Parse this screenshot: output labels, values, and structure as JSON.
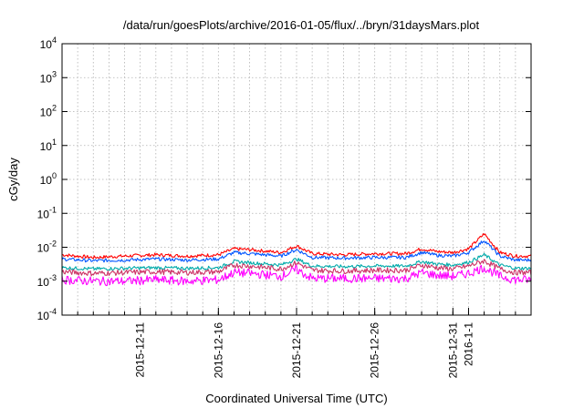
{
  "chart_data": {
    "type": "line",
    "title": "/data/run/goesPlots/archive/2016-01-05/flux/../bryn/31daysMars.plot",
    "xlabel": "Coordinated Universal Time (UTC)",
    "ylabel": "cGy/day",
    "y_scale": "log",
    "ylim": [
      0.0001,
      10000
    ],
    "y_ticks": [
      {
        "value": 0.0001,
        "base": "10",
        "exp": "-4"
      },
      {
        "value": 0.001,
        "base": "10",
        "exp": "-3"
      },
      {
        "value": 0.01,
        "base": "10",
        "exp": "-2"
      },
      {
        "value": 0.1,
        "base": "10",
        "exp": "-1"
      },
      {
        "value": 1,
        "base": "10",
        "exp": "0"
      },
      {
        "value": 10,
        "base": "10",
        "exp": "1"
      },
      {
        "value": 100,
        "base": "10",
        "exp": "2"
      },
      {
        "value": 1000,
        "base": "10",
        "exp": "3"
      },
      {
        "value": 10000,
        "base": "10",
        "exp": "4"
      }
    ],
    "xlim": [
      "2015-12-06",
      "2016-01-05"
    ],
    "x_ticks": [
      {
        "value": "2015-12-11",
        "label": "2015-12-11"
      },
      {
        "value": "2015-12-16",
        "label": "2015-12-16"
      },
      {
        "value": "2015-12-21",
        "label": "2015-12-21"
      },
      {
        "value": "2015-12-26",
        "label": "2015-12-26"
      },
      {
        "value": "2015-12-31",
        "label": "2015-12-31"
      },
      {
        "value": "2016-01-01",
        "label": "2016-1-1"
      }
    ],
    "grid": true,
    "legend": "none",
    "series": [
      {
        "color": "#ff0000",
        "x": [
          "2015-12-06",
          "2015-12-08",
          "2015-12-10",
          "2015-12-12",
          "2015-12-14",
          "2015-12-16",
          "2015-12-17",
          "2015-12-18",
          "2015-12-20",
          "2015-12-21",
          "2015-12-22",
          "2015-12-24",
          "2015-12-26",
          "2015-12-28",
          "2015-12-29",
          "2015-12-30",
          "2015-12-31",
          "2016-01-01",
          "2016-01-02",
          "2016-01-03",
          "2016-01-04",
          "2016-01-05"
        ],
        "y": [
          0.006,
          0.005,
          0.0055,
          0.006,
          0.0055,
          0.006,
          0.009,
          0.0085,
          0.007,
          0.011,
          0.0065,
          0.006,
          0.0065,
          0.0065,
          0.009,
          0.0075,
          0.007,
          0.009,
          0.025,
          0.007,
          0.0055,
          0.0055
        ]
      },
      {
        "color": "#0055ff",
        "x": [
          "2015-12-06",
          "2015-12-08",
          "2015-12-10",
          "2015-12-12",
          "2015-12-14",
          "2015-12-16",
          "2015-12-17",
          "2015-12-18",
          "2015-12-20",
          "2015-12-21",
          "2015-12-22",
          "2015-12-24",
          "2015-12-26",
          "2015-12-28",
          "2015-12-29",
          "2015-12-30",
          "2015-12-31",
          "2016-01-01",
          "2016-01-02",
          "2016-01-03",
          "2016-01-04",
          "2016-01-05"
        ],
        "y": [
          0.0045,
          0.004,
          0.0042,
          0.0045,
          0.0042,
          0.0045,
          0.007,
          0.0065,
          0.0055,
          0.0085,
          0.005,
          0.0048,
          0.005,
          0.005,
          0.007,
          0.0058,
          0.0055,
          0.007,
          0.016,
          0.0055,
          0.0042,
          0.0042
        ]
      },
      {
        "color": "#00aaaa",
        "x": [
          "2015-12-06",
          "2015-12-08",
          "2015-12-10",
          "2015-12-12",
          "2015-12-14",
          "2015-12-16",
          "2015-12-17",
          "2015-12-18",
          "2015-12-20",
          "2015-12-21",
          "2015-12-22",
          "2015-12-24",
          "2015-12-26",
          "2015-12-28",
          "2015-12-29",
          "2015-12-30",
          "2015-12-31",
          "2016-01-01",
          "2016-01-02",
          "2016-01-03",
          "2016-01-04",
          "2016-01-05"
        ],
        "y": [
          0.0025,
          0.0023,
          0.0024,
          0.0025,
          0.0024,
          0.0025,
          0.0038,
          0.0035,
          0.003,
          0.0045,
          0.0028,
          0.0027,
          0.0028,
          0.0028,
          0.0038,
          0.0032,
          0.003,
          0.0036,
          0.006,
          0.003,
          0.0024,
          0.0024
        ]
      },
      {
        "color": "#cc3366",
        "x": [
          "2015-12-06",
          "2015-12-08",
          "2015-12-10",
          "2015-12-12",
          "2015-12-14",
          "2015-12-16",
          "2015-12-17",
          "2015-12-18",
          "2015-12-20",
          "2015-12-21",
          "2015-12-22",
          "2015-12-24",
          "2015-12-26",
          "2015-12-28",
          "2015-12-29",
          "2015-12-30",
          "2015-12-31",
          "2016-01-01",
          "2016-01-02",
          "2016-01-03",
          "2016-01-04",
          "2016-01-05"
        ],
        "y": [
          0.0019,
          0.0017,
          0.0018,
          0.0019,
          0.0018,
          0.0019,
          0.003,
          0.0028,
          0.0023,
          0.0035,
          0.0021,
          0.002,
          0.0021,
          0.0021,
          0.003,
          0.0025,
          0.0023,
          0.0028,
          0.004,
          0.0023,
          0.0018,
          0.0018
        ]
      },
      {
        "color": "#ff00ff",
        "x": [
          "2015-12-06",
          "2015-12-08",
          "2015-12-10",
          "2015-12-12",
          "2015-12-14",
          "2015-12-16",
          "2015-12-17",
          "2015-12-18",
          "2015-12-20",
          "2015-12-21",
          "2015-12-22",
          "2015-12-24",
          "2015-12-26",
          "2015-12-28",
          "2015-12-29",
          "2015-12-30",
          "2015-12-31",
          "2016-01-01",
          "2016-01-02",
          "2016-01-03",
          "2016-01-04",
          "2016-01-05"
        ],
        "y": [
          0.0011,
          0.001,
          0.001,
          0.0011,
          0.001,
          0.0011,
          0.0018,
          0.0017,
          0.0014,
          0.0022,
          0.0012,
          0.0012,
          0.0012,
          0.0012,
          0.0018,
          0.0015,
          0.0014,
          0.0017,
          0.0025,
          0.0014,
          0.0011,
          0.0011
        ]
      }
    ]
  }
}
